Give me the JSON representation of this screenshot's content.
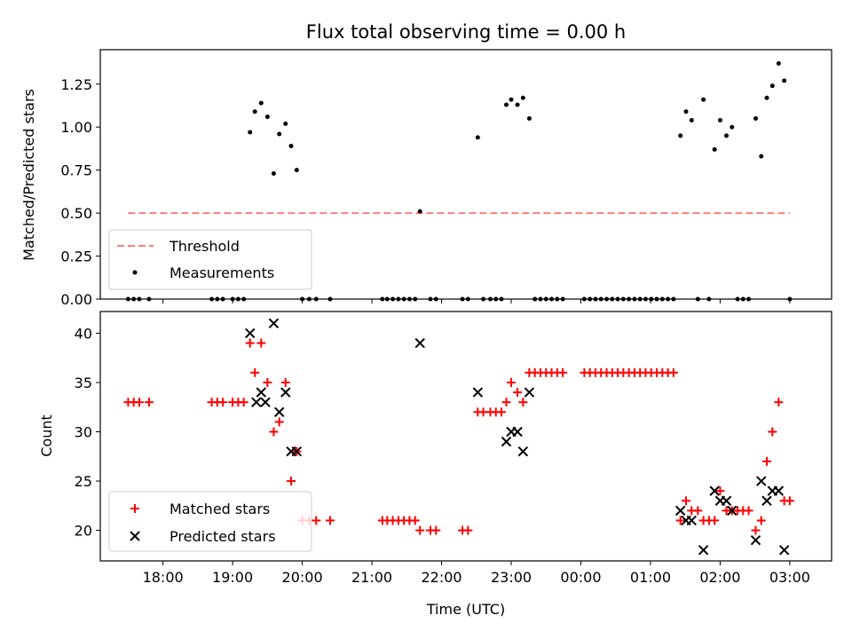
{
  "figure": {
    "title": "Flux total observing time = 0.00 h",
    "xlabel": "Time (UTC)",
    "x_tick_labels": [
      "18:00",
      "19:00",
      "20:00",
      "21:00",
      "22:00",
      "23:00",
      "00:00",
      "01:00",
      "02:00",
      "03:00"
    ]
  },
  "chart_data": [
    {
      "type": "scatter",
      "ylabel": "Matched/Predicted stars",
      "xlim": [
        17.1,
        27.6
      ],
      "ylim": [
        0,
        1.45
      ],
      "y_tick_labels": [
        "0.00",
        "0.25",
        "0.50",
        "0.75",
        "1.00",
        "1.25"
      ],
      "y_ticks": [
        0,
        0.25,
        0.5,
        0.75,
        1.0,
        1.25
      ],
      "grid": false,
      "legend_position": "lower-left",
      "threshold": {
        "name": "Threshold",
        "value": 0.5,
        "x_range": [
          17.5,
          27.0
        ],
        "color": "#ff7f7f"
      },
      "series": [
        {
          "name": "Measurements",
          "marker": "dot",
          "color": "#000000",
          "points": [
            [
              17.5,
              0
            ],
            [
              17.58,
              0
            ],
            [
              17.66,
              0
            ],
            [
              17.8,
              0
            ],
            [
              18.7,
              0
            ],
            [
              18.78,
              0
            ],
            [
              18.86,
              0
            ],
            [
              19.0,
              0
            ],
            [
              19.08,
              0
            ],
            [
              19.16,
              0
            ],
            [
              19.25,
              0.97
            ],
            [
              19.32,
              1.09
            ],
            [
              19.41,
              1.14
            ],
            [
              19.5,
              1.06
            ],
            [
              19.59,
              0.73
            ],
            [
              19.67,
              0.96
            ],
            [
              19.76,
              1.02
            ],
            [
              19.84,
              0.89
            ],
            [
              19.92,
              0.75
            ],
            [
              20.0,
              0
            ],
            [
              20.1,
              0
            ],
            [
              20.2,
              0
            ],
            [
              20.4,
              0
            ],
            [
              21.15,
              0
            ],
            [
              21.22,
              0
            ],
            [
              21.3,
              0
            ],
            [
              21.38,
              0
            ],
            [
              21.46,
              0
            ],
            [
              21.54,
              0
            ],
            [
              21.62,
              0
            ],
            [
              21.69,
              0.51
            ],
            [
              21.84,
              0
            ],
            [
              21.92,
              0
            ],
            [
              22.3,
              0
            ],
            [
              22.38,
              0
            ],
            [
              22.52,
              0.94
            ],
            [
              22.6,
              0
            ],
            [
              22.7,
              0
            ],
            [
              22.78,
              0
            ],
            [
              22.86,
              0
            ],
            [
              22.93,
              1.13
            ],
            [
              23.0,
              1.16
            ],
            [
              23.09,
              1.13
            ],
            [
              23.17,
              1.17
            ],
            [
              23.26,
              1.05
            ],
            [
              23.34,
              0
            ],
            [
              23.42,
              0
            ],
            [
              23.5,
              0
            ],
            [
              23.58,
              0
            ],
            [
              23.66,
              0
            ],
            [
              23.74,
              0
            ],
            [
              24.05,
              0
            ],
            [
              24.13,
              0
            ],
            [
              24.21,
              0
            ],
            [
              24.29,
              0
            ],
            [
              24.37,
              0
            ],
            [
              24.45,
              0
            ],
            [
              24.53,
              0
            ],
            [
              24.61,
              0
            ],
            [
              24.69,
              0
            ],
            [
              24.77,
              0
            ],
            [
              24.85,
              0
            ],
            [
              24.93,
              0
            ],
            [
              25.01,
              0
            ],
            [
              25.09,
              0
            ],
            [
              25.17,
              0
            ],
            [
              25.25,
              0
            ],
            [
              25.33,
              0
            ],
            [
              25.43,
              0.95
            ],
            [
              25.51,
              1.09
            ],
            [
              25.59,
              1.04
            ],
            [
              25.68,
              0
            ],
            [
              25.76,
              1.16
            ],
            [
              25.84,
              0
            ],
            [
              25.92,
              0.87
            ],
            [
              26.0,
              1.04
            ],
            [
              26.09,
              0.95
            ],
            [
              26.17,
              1.0
            ],
            [
              26.25,
              0
            ],
            [
              26.33,
              0
            ],
            [
              26.41,
              0
            ],
            [
              26.51,
              1.05
            ],
            [
              26.59,
              0.83
            ],
            [
              26.67,
              1.17
            ],
            [
              26.75,
              1.24
            ],
            [
              26.84,
              1.37
            ],
            [
              26.92,
              1.27
            ],
            [
              27.0,
              0
            ]
          ]
        }
      ]
    },
    {
      "type": "scatter",
      "ylabel": "Count",
      "xlim": [
        17.1,
        27.6
      ],
      "ylim": [
        16.9,
        42.2
      ],
      "y_tick_labels": [
        "20",
        "25",
        "30",
        "35",
        "40"
      ],
      "y_ticks": [
        20,
        25,
        30,
        35,
        40
      ],
      "grid": false,
      "legend_position": "lower-left",
      "series": [
        {
          "name": "Matched stars",
          "marker": "plus",
          "color": "#ff0000",
          "points": [
            [
              17.5,
              33
            ],
            [
              17.58,
              33
            ],
            [
              17.66,
              33
            ],
            [
              17.8,
              33
            ],
            [
              18.7,
              33
            ],
            [
              18.78,
              33
            ],
            [
              18.86,
              33
            ],
            [
              19.0,
              33
            ],
            [
              19.08,
              33
            ],
            [
              19.16,
              33
            ],
            [
              19.25,
              39
            ],
            [
              19.32,
              36
            ],
            [
              19.41,
              39
            ],
            [
              19.5,
              35
            ],
            [
              19.59,
              30
            ],
            [
              19.67,
              31
            ],
            [
              19.76,
              35
            ],
            [
              19.84,
              25
            ],
            [
              19.92,
              28
            ],
            [
              20.0,
              21
            ],
            [
              20.1,
              21
            ],
            [
              20.2,
              21
            ],
            [
              20.4,
              21
            ],
            [
              21.15,
              21
            ],
            [
              21.22,
              21
            ],
            [
              21.3,
              21
            ],
            [
              21.38,
              21
            ],
            [
              21.46,
              21
            ],
            [
              21.54,
              21
            ],
            [
              21.62,
              21
            ],
            [
              21.69,
              20
            ],
            [
              21.84,
              20
            ],
            [
              21.92,
              20
            ],
            [
              22.3,
              20
            ],
            [
              22.38,
              20
            ],
            [
              22.52,
              32
            ],
            [
              22.6,
              32
            ],
            [
              22.7,
              32
            ],
            [
              22.78,
              32
            ],
            [
              22.86,
              32
            ],
            [
              22.93,
              33
            ],
            [
              23.0,
              35
            ],
            [
              23.09,
              34
            ],
            [
              23.17,
              33
            ],
            [
              23.26,
              36
            ],
            [
              23.34,
              36
            ],
            [
              23.42,
              36
            ],
            [
              23.5,
              36
            ],
            [
              23.58,
              36
            ],
            [
              23.66,
              36
            ],
            [
              23.74,
              36
            ],
            [
              24.05,
              36
            ],
            [
              24.13,
              36
            ],
            [
              24.21,
              36
            ],
            [
              24.29,
              36
            ],
            [
              24.37,
              36
            ],
            [
              24.45,
              36
            ],
            [
              24.53,
              36
            ],
            [
              24.61,
              36
            ],
            [
              24.69,
              36
            ],
            [
              24.77,
              36
            ],
            [
              24.85,
              36
            ],
            [
              24.93,
              36
            ],
            [
              25.01,
              36
            ],
            [
              25.09,
              36
            ],
            [
              25.17,
              36
            ],
            [
              25.25,
              36
            ],
            [
              25.33,
              36
            ],
            [
              25.43,
              21
            ],
            [
              25.51,
              23
            ],
            [
              25.59,
              22
            ],
            [
              25.68,
              22
            ],
            [
              25.76,
              21
            ],
            [
              25.84,
              21
            ],
            [
              25.92,
              21
            ],
            [
              26.0,
              24
            ],
            [
              26.09,
              22
            ],
            [
              26.17,
              22
            ],
            [
              26.25,
              22
            ],
            [
              26.33,
              22
            ],
            [
              26.41,
              22
            ],
            [
              26.51,
              20
            ],
            [
              26.59,
              21
            ],
            [
              26.67,
              27
            ],
            [
              26.75,
              30
            ],
            [
              26.84,
              33
            ],
            [
              26.92,
              23
            ],
            [
              27.0,
              23
            ]
          ]
        },
        {
          "name": "Predicted stars",
          "marker": "x",
          "color": "#000000",
          "points": [
            [
              19.25,
              40
            ],
            [
              19.34,
              33
            ],
            [
              19.41,
              34
            ],
            [
              19.47,
              33
            ],
            [
              19.59,
              41
            ],
            [
              19.67,
              32
            ],
            [
              19.76,
              34
            ],
            [
              19.84,
              28
            ],
            [
              19.92,
              28
            ],
            [
              21.69,
              39
            ],
            [
              22.52,
              34
            ],
            [
              22.93,
              29
            ],
            [
              23.0,
              30
            ],
            [
              23.09,
              30
            ],
            [
              23.17,
              28
            ],
            [
              23.26,
              34
            ],
            [
              25.43,
              22
            ],
            [
              25.51,
              21
            ],
            [
              25.59,
              21
            ],
            [
              25.76,
              18
            ],
            [
              25.92,
              24
            ],
            [
              26.0,
              23
            ],
            [
              26.09,
              23
            ],
            [
              26.17,
              22
            ],
            [
              26.51,
              19
            ],
            [
              26.59,
              25
            ],
            [
              26.67,
              23
            ],
            [
              26.75,
              24
            ],
            [
              26.84,
              24
            ],
            [
              26.92,
              18
            ]
          ]
        }
      ]
    }
  ]
}
